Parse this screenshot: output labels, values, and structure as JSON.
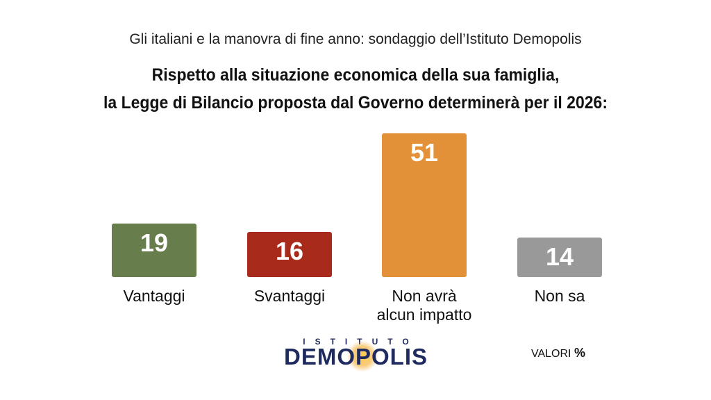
{
  "header": {
    "subtitle": "Gli italiani e la manovra di fine anno: sondaggio dell’Istituto Demopolis",
    "title_line1": "Rispetto alla situazione economica della sua famiglia,",
    "title_line2": "la Legge di Bilancio proposta dal Governo determinerà per il 2026:"
  },
  "chart_data": {
    "type": "bar",
    "title": "Rispetto alla situazione economica della sua famiglia, la Legge di Bilancio proposta dal Governo determinerà per il 2026:",
    "categories": [
      "Vantaggi",
      "Svantaggi",
      "Non avrà alcun impatto",
      "Non sa"
    ],
    "category_lines": [
      [
        "Vantaggi"
      ],
      [
        "Svantaggi"
      ],
      [
        "Non avrà",
        "alcun impatto"
      ],
      [
        "Non sa"
      ]
    ],
    "values": [
      19,
      16,
      51,
      14
    ],
    "colors": [
      "#677d4b",
      "#a82a1b",
      "#e39138",
      "#999999"
    ],
    "ylim": [
      0,
      51
    ],
    "xlabel": "",
    "ylabel": ""
  },
  "footer": {
    "logo_top": "ISTITUTO",
    "logo_main": "DEMOPOLIS",
    "valori_label": "VALORI",
    "valori_unit": "%"
  }
}
